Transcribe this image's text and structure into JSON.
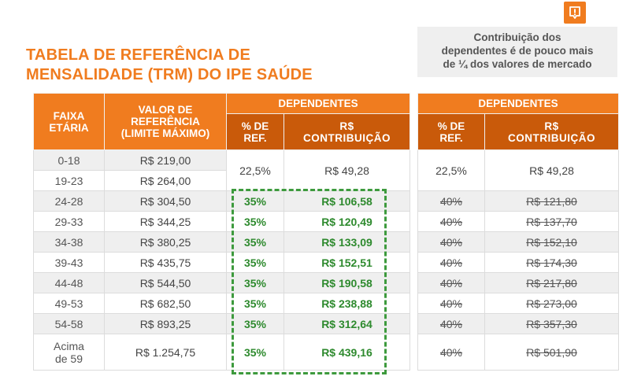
{
  "header": {
    "title_line1": "TABELA DE REFERÊNCIA DE",
    "title_line2": "MENSALIDADE (TRM) DO IPE SAÚDE",
    "note_line1": "Contribuição dos",
    "note_line2": "dependentes é de pouco mais",
    "note_line3": "de ¼ dos valores de mercado"
  },
  "colors": {
    "orange": "#f07c1f",
    "dark_orange": "#c95a0a",
    "green": "#2e8a2e"
  },
  "icons": {
    "top_right": "alert-square-icon"
  },
  "table_main": {
    "col_age_line1": "FAIXA",
    "col_age_line2": "ETÁRIA",
    "col_ref_line1": "VALOR DE",
    "col_ref_line2": "REFERÊNCIA",
    "col_ref_line3": "(LIMITE MÁXIMO)",
    "group_header": "DEPENDENTES",
    "col_pct_line1": "% DE",
    "col_pct_line2": "REF.",
    "col_contrib_line1": "R$",
    "col_contrib_line2": "CONTRIBUIÇÃO",
    "rows": [
      {
        "age": "0-18",
        "ref": "R$ 219,00"
      },
      {
        "age": "19-23",
        "ref": "R$ 264,00"
      },
      {
        "age": "24-28",
        "ref": "R$ 304,50",
        "pct": "35%",
        "contrib": "R$ 106,58"
      },
      {
        "age": "29-33",
        "ref": "R$ 344,25",
        "pct": "35%",
        "contrib": "R$ 120,49"
      },
      {
        "age": "34-38",
        "ref": "R$ 380,25",
        "pct": "35%",
        "contrib": "R$ 133,09"
      },
      {
        "age": "39-43",
        "ref": "R$ 435,75",
        "pct": "35%",
        "contrib": "R$ 152,51"
      },
      {
        "age": "44-48",
        "ref": "R$ 544,50",
        "pct": "35%",
        "contrib": "R$ 190,58"
      },
      {
        "age": "49-53",
        "ref": "R$ 682,50",
        "pct": "35%",
        "contrib": "R$ 238,88"
      },
      {
        "age": "54-58",
        "ref": "R$ 893,25",
        "pct": "35%",
        "contrib": "R$ 312,64"
      },
      {
        "age_line1": "Acima",
        "age_line2": "de 59",
        "ref": "R$ 1.254,75",
        "pct": "35%",
        "contrib": "R$ 439,16"
      }
    ],
    "merged_pct": "22,5%",
    "merged_contrib": "R$ 49,28"
  },
  "table_market": {
    "group_header": "DEPENDENTES",
    "col_pct_line1": "% DE",
    "col_pct_line2": "REF.",
    "col_contrib_line1": "R$",
    "col_contrib_line2": "CONTRIBUIÇÃO",
    "merged_pct": "22,5%",
    "merged_contrib": "R$ 49,28",
    "rows": [
      {
        "pct": "40%",
        "contrib": "R$ 121,80"
      },
      {
        "pct": "40%",
        "contrib": "R$ 137,70"
      },
      {
        "pct": "40%",
        "contrib": "R$ 152,10"
      },
      {
        "pct": "40%",
        "contrib": "R$ 174,30"
      },
      {
        "pct": "40%",
        "contrib": "R$ 217,80"
      },
      {
        "pct": "40%",
        "contrib": "R$ 273,00"
      },
      {
        "pct": "40%",
        "contrib": "R$ 357,30"
      },
      {
        "pct": "40%",
        "contrib": "R$ 501,90"
      }
    ]
  }
}
